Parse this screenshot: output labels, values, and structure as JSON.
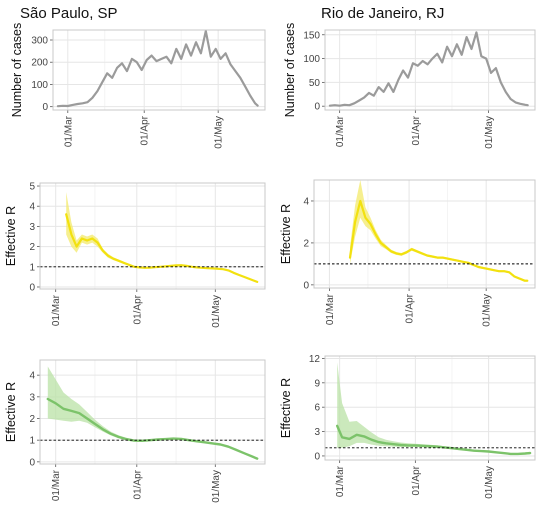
{
  "figure": {
    "left_title": "São Paulo, SP",
    "right_title": "Rio de Janeiro, RJ"
  },
  "colors": {
    "cases": "#a6a6a6",
    "cases_line": "#9b9b9b",
    "yellow_line": "#f2e10f",
    "yellow_band": "#f3e96a",
    "green_line": "#7cc36a",
    "green_band": "#b9e2a6",
    "grid": "#e6e6e6",
    "border": "#c8c8c8",
    "reference": "#000000"
  },
  "chart_data": [
    {
      "id": "sp-cases",
      "type": "line",
      "title": "São Paulo, SP",
      "xlabel": "",
      "ylabel": "Number of cases",
      "x_type": "date",
      "xlim": [
        "2020-02-24",
        "2020-05-20"
      ],
      "x_ticks": [
        "2020-03-01",
        "2020-04-01",
        "2020-05-01"
      ],
      "x_tick_labels": [
        "01/Mar",
        "01/Apr",
        "01/May"
      ],
      "ylim": [
        -15,
        345
      ],
      "y_ticks": [
        0,
        100,
        200,
        300
      ],
      "series": [
        {
          "style": "cases",
          "x": [
            "2020-02-26",
            "2020-02-28",
            "2020-03-01",
            "2020-03-03",
            "2020-03-05",
            "2020-03-07",
            "2020-03-09",
            "2020-03-11",
            "2020-03-13",
            "2020-03-15",
            "2020-03-17",
            "2020-03-19",
            "2020-03-21",
            "2020-03-23",
            "2020-03-25",
            "2020-03-27",
            "2020-03-29",
            "2020-03-31",
            "2020-04-02",
            "2020-04-04",
            "2020-04-06",
            "2020-04-08",
            "2020-04-10",
            "2020-04-12",
            "2020-04-14",
            "2020-04-16",
            "2020-04-18",
            "2020-04-20",
            "2020-04-22",
            "2020-04-24",
            "2020-04-26",
            "2020-04-28",
            "2020-04-30",
            "2020-05-02",
            "2020-05-04",
            "2020-05-06",
            "2020-05-08",
            "2020-05-10",
            "2020-05-12",
            "2020-05-14",
            "2020-05-16",
            "2020-05-17"
          ],
          "y": [
            2,
            4,
            3,
            8,
            12,
            15,
            20,
            40,
            70,
            110,
            150,
            130,
            175,
            195,
            160,
            215,
            200,
            165,
            210,
            230,
            205,
            215,
            225,
            195,
            260,
            215,
            280,
            230,
            290,
            240,
            340,
            225,
            260,
            215,
            240,
            190,
            160,
            130,
            90,
            50,
            15,
            5
          ]
        }
      ]
    },
    {
      "id": "rj-cases",
      "type": "line",
      "title": "Rio de Janeiro, RJ",
      "xlabel": "",
      "ylabel": "Number of cases",
      "x_type": "date",
      "xlim": [
        "2020-02-24",
        "2020-05-20"
      ],
      "x_ticks": [
        "2020-03-01",
        "2020-04-01",
        "2020-05-01"
      ],
      "x_tick_labels": [
        "01/Mar",
        "01/Apr",
        "01/May"
      ],
      "ylim": [
        -8,
        160
      ],
      "y_ticks": [
        0,
        50,
        100,
        150
      ],
      "series": [
        {
          "style": "cases",
          "x": [
            "2020-02-26",
            "2020-02-28",
            "2020-03-01",
            "2020-03-03",
            "2020-03-05",
            "2020-03-07",
            "2020-03-09",
            "2020-03-11",
            "2020-03-13",
            "2020-03-15",
            "2020-03-17",
            "2020-03-19",
            "2020-03-21",
            "2020-03-23",
            "2020-03-25",
            "2020-03-27",
            "2020-03-29",
            "2020-03-31",
            "2020-04-02",
            "2020-04-04",
            "2020-04-06",
            "2020-04-08",
            "2020-04-10",
            "2020-04-12",
            "2020-04-14",
            "2020-04-16",
            "2020-04-18",
            "2020-04-20",
            "2020-04-22",
            "2020-04-24",
            "2020-04-26",
            "2020-04-28",
            "2020-04-30",
            "2020-05-02",
            "2020-05-04",
            "2020-05-06",
            "2020-05-08",
            "2020-05-10",
            "2020-05-12",
            "2020-05-14",
            "2020-05-16",
            "2020-05-17"
          ],
          "y": [
            1,
            2,
            1,
            3,
            2,
            6,
            12,
            18,
            28,
            22,
            40,
            30,
            48,
            30,
            55,
            75,
            60,
            90,
            85,
            95,
            88,
            100,
            110,
            92,
            125,
            105,
            130,
            108,
            145,
            120,
            155,
            105,
            100,
            70,
            80,
            50,
            30,
            15,
            8,
            5,
            3,
            2
          ]
        }
      ]
    },
    {
      "id": "sp-r-yellow",
      "type": "line",
      "xlabel": "",
      "ylabel": "Effective R",
      "x_type": "date",
      "xlim": [
        "2020-02-24",
        "2020-05-20"
      ],
      "x_ticks": [
        "2020-03-01",
        "2020-04-01",
        "2020-05-01"
      ],
      "x_tick_labels": [
        "01/Mar",
        "01/Apr",
        "01/May"
      ],
      "ylim": [
        -0.1,
        5.15
      ],
      "y_ticks": [
        0,
        1,
        2,
        3,
        4,
        5
      ],
      "reference_line": 1,
      "series": [
        {
          "style": "yellow",
          "x": [
            "2020-03-05",
            "2020-03-07",
            "2020-03-09",
            "2020-03-11",
            "2020-03-13",
            "2020-03-15",
            "2020-03-17",
            "2020-03-19",
            "2020-03-21",
            "2020-03-23",
            "2020-03-25",
            "2020-03-27",
            "2020-03-29",
            "2020-03-31",
            "2020-04-02",
            "2020-04-04",
            "2020-04-06",
            "2020-04-08",
            "2020-04-10",
            "2020-04-12",
            "2020-04-14",
            "2020-04-16",
            "2020-04-18",
            "2020-04-20",
            "2020-04-22",
            "2020-04-24",
            "2020-04-26",
            "2020-04-28",
            "2020-04-30",
            "2020-05-02",
            "2020-05-04",
            "2020-05-06",
            "2020-05-08",
            "2020-05-10",
            "2020-05-12",
            "2020-05-14",
            "2020-05-16",
            "2020-05-17"
          ],
          "y": [
            3.6,
            2.6,
            2.0,
            2.4,
            2.3,
            2.4,
            2.2,
            1.8,
            1.55,
            1.4,
            1.3,
            1.2,
            1.1,
            1.0,
            0.97,
            0.95,
            0.96,
            0.98,
            1.0,
            1.02,
            1.05,
            1.07,
            1.08,
            1.05,
            1.0,
            0.97,
            0.95,
            0.93,
            0.92,
            0.9,
            0.88,
            0.82,
            0.7,
            0.6,
            0.5,
            0.4,
            0.3,
            0.25
          ],
          "lower": [
            2.6,
            2.0,
            1.7,
            2.2,
            2.1,
            2.2,
            2.0,
            1.7,
            1.45,
            1.33,
            1.24,
            1.15,
            1.06,
            0.97,
            0.94,
            0.92,
            0.93,
            0.95,
            0.97,
            0.99,
            1.02,
            1.04,
            1.05,
            1.02,
            0.97,
            0.94,
            0.92,
            0.9,
            0.89,
            0.87,
            0.85,
            0.79,
            0.67,
            0.57,
            0.47,
            0.37,
            0.27,
            0.22
          ],
          "upper": [
            4.7,
            3.2,
            2.3,
            2.6,
            2.5,
            2.6,
            2.4,
            1.9,
            1.65,
            1.47,
            1.36,
            1.25,
            1.14,
            1.03,
            1.0,
            0.98,
            0.99,
            1.01,
            1.03,
            1.05,
            1.08,
            1.1,
            1.11,
            1.08,
            1.03,
            1.0,
            0.98,
            0.96,
            0.95,
            0.93,
            0.91,
            0.85,
            0.73,
            0.63,
            0.53,
            0.43,
            0.33,
            0.28
          ]
        }
      ]
    },
    {
      "id": "rj-r-yellow",
      "type": "line",
      "xlabel": "",
      "ylabel": "Effective R",
      "x_type": "date",
      "xlim": [
        "2020-02-24",
        "2020-05-20"
      ],
      "x_ticks": [
        "2020-03-01",
        "2020-04-01",
        "2020-05-01"
      ],
      "x_tick_labels": [
        "01/Mar",
        "01/Apr",
        "01/May"
      ],
      "ylim": [
        -0.15,
        5.0
      ],
      "y_ticks": [
        0,
        2,
        4
      ],
      "reference_line": 1,
      "series": [
        {
          "style": "yellow",
          "x": [
            "2020-03-09",
            "2020-03-11",
            "2020-03-13",
            "2020-03-15",
            "2020-03-17",
            "2020-03-19",
            "2020-03-21",
            "2020-03-23",
            "2020-03-25",
            "2020-03-27",
            "2020-03-29",
            "2020-03-31",
            "2020-04-02",
            "2020-04-04",
            "2020-04-06",
            "2020-04-08",
            "2020-04-10",
            "2020-04-12",
            "2020-04-14",
            "2020-04-16",
            "2020-04-18",
            "2020-04-20",
            "2020-04-22",
            "2020-04-24",
            "2020-04-26",
            "2020-04-28",
            "2020-04-30",
            "2020-05-02",
            "2020-05-04",
            "2020-05-06",
            "2020-05-08",
            "2020-05-10",
            "2020-05-12",
            "2020-05-14",
            "2020-05-16",
            "2020-05-17"
          ],
          "y": [
            1.3,
            3.0,
            4.0,
            3.2,
            2.9,
            2.4,
            2.0,
            1.8,
            1.6,
            1.5,
            1.45,
            1.55,
            1.7,
            1.6,
            1.5,
            1.4,
            1.35,
            1.3,
            1.3,
            1.25,
            1.2,
            1.15,
            1.1,
            1.05,
            0.95,
            0.85,
            0.8,
            0.75,
            0.7,
            0.65,
            0.65,
            0.6,
            0.4,
            0.3,
            0.2,
            0.2
          ],
          "lower": [
            1.0,
            2.3,
            3.2,
            2.8,
            2.6,
            2.2,
            1.85,
            1.7,
            1.52,
            1.43,
            1.38,
            1.48,
            1.63,
            1.54,
            1.44,
            1.35,
            1.3,
            1.25,
            1.25,
            1.2,
            1.15,
            1.1,
            1.05,
            1.0,
            0.9,
            0.8,
            0.75,
            0.7,
            0.65,
            0.6,
            0.6,
            0.55,
            0.35,
            0.25,
            0.15,
            0.15
          ],
          "upper": [
            1.8,
            3.8,
            5.0,
            3.7,
            3.2,
            2.6,
            2.15,
            1.9,
            1.68,
            1.57,
            1.52,
            1.62,
            1.77,
            1.66,
            1.56,
            1.45,
            1.4,
            1.35,
            1.35,
            1.3,
            1.25,
            1.2,
            1.15,
            1.1,
            1.0,
            0.9,
            0.85,
            0.8,
            0.75,
            0.7,
            0.7,
            0.65,
            0.45,
            0.35,
            0.25,
            0.25
          ]
        }
      ]
    },
    {
      "id": "sp-r-green",
      "type": "line",
      "xlabel": "",
      "ylabel": "Effective R",
      "x_type": "date",
      "xlim": [
        "2020-02-24",
        "2020-05-20"
      ],
      "x_ticks": [
        "2020-03-01",
        "2020-04-01",
        "2020-05-01"
      ],
      "x_tick_labels": [
        "01/Mar",
        "01/Apr",
        "01/May"
      ],
      "ylim": [
        -0.1,
        4.7
      ],
      "y_ticks": [
        0,
        1,
        2,
        3,
        4
      ],
      "reference_line": 1,
      "series": [
        {
          "style": "green",
          "x": [
            "2020-02-27",
            "2020-03-01",
            "2020-03-04",
            "2020-03-07",
            "2020-03-10",
            "2020-03-13",
            "2020-03-16",
            "2020-03-19",
            "2020-03-22",
            "2020-03-25",
            "2020-03-28",
            "2020-03-31",
            "2020-04-03",
            "2020-04-06",
            "2020-04-09",
            "2020-04-12",
            "2020-04-15",
            "2020-04-18",
            "2020-04-21",
            "2020-04-24",
            "2020-04-27",
            "2020-04-30",
            "2020-05-03",
            "2020-05-06",
            "2020-05-09",
            "2020-05-12",
            "2020-05-15",
            "2020-05-17"
          ],
          "y": [
            2.9,
            2.7,
            2.45,
            2.35,
            2.25,
            2.0,
            1.75,
            1.5,
            1.3,
            1.15,
            1.05,
            0.98,
            0.97,
            1.0,
            1.03,
            1.05,
            1.07,
            1.06,
            1.0,
            0.95,
            0.9,
            0.85,
            0.8,
            0.7,
            0.55,
            0.4,
            0.25,
            0.15
          ],
          "lower": [
            2.0,
            1.95,
            1.9,
            1.85,
            1.9,
            1.8,
            1.6,
            1.4,
            1.22,
            1.08,
            0.99,
            0.93,
            0.93,
            0.96,
            0.99,
            1.01,
            1.03,
            1.02,
            0.97,
            0.92,
            0.87,
            0.82,
            0.77,
            0.67,
            0.52,
            0.37,
            0.22,
            0.12
          ],
          "upper": [
            4.4,
            3.8,
            3.2,
            2.9,
            2.65,
            2.3,
            1.95,
            1.65,
            1.4,
            1.23,
            1.11,
            1.03,
            1.01,
            1.04,
            1.07,
            1.09,
            1.11,
            1.1,
            1.03,
            0.98,
            0.93,
            0.88,
            0.83,
            0.73,
            0.58,
            0.43,
            0.28,
            0.18
          ]
        }
      ]
    },
    {
      "id": "rj-r-green",
      "type": "line",
      "xlabel": "",
      "ylabel": "Effective R",
      "x_type": "date",
      "xlim": [
        "2020-02-24",
        "2020-05-20"
      ],
      "x_ticks": [
        "2020-03-01",
        "2020-04-01",
        "2020-05-01"
      ],
      "x_tick_labels": [
        "01/Mar",
        "01/Apr",
        "01/May"
      ],
      "ylim": [
        -0.5,
        12.3
      ],
      "y_ticks": [
        0,
        3,
        6,
        9,
        12
      ],
      "reference_line": 1,
      "series": [
        {
          "style": "green",
          "x": [
            "2020-02-29",
            "2020-03-02",
            "2020-03-05",
            "2020-03-08",
            "2020-03-11",
            "2020-03-14",
            "2020-03-17",
            "2020-03-20",
            "2020-03-23",
            "2020-03-26",
            "2020-03-29",
            "2020-04-01",
            "2020-04-04",
            "2020-04-07",
            "2020-04-10",
            "2020-04-13",
            "2020-04-16",
            "2020-04-19",
            "2020-04-22",
            "2020-04-25",
            "2020-04-28",
            "2020-05-01",
            "2020-05-04",
            "2020-05-07",
            "2020-05-10",
            "2020-05-13",
            "2020-05-16",
            "2020-05-18"
          ],
          "y": [
            3.7,
            2.3,
            2.1,
            2.6,
            2.4,
            2.0,
            1.7,
            1.55,
            1.45,
            1.35,
            1.3,
            1.3,
            1.25,
            1.2,
            1.15,
            1.05,
            0.95,
            0.85,
            0.75,
            0.65,
            0.6,
            0.55,
            0.45,
            0.35,
            0.25,
            0.25,
            0.3,
            0.35
          ],
          "lower": [
            1.0,
            1.0,
            1.2,
            1.6,
            1.6,
            1.4,
            1.25,
            1.2,
            1.15,
            1.1,
            1.1,
            1.1,
            1.07,
            1.03,
            1.0,
            0.92,
            0.83,
            0.74,
            0.65,
            0.56,
            0.5,
            0.45,
            0.36,
            0.27,
            0.18,
            0.15,
            0.18,
            0.2
          ],
          "upper": [
            11.5,
            6.5,
            4.2,
            4.3,
            3.6,
            2.9,
            2.3,
            2.0,
            1.8,
            1.65,
            1.55,
            1.5,
            1.43,
            1.37,
            1.3,
            1.2,
            1.08,
            0.97,
            0.86,
            0.75,
            0.7,
            0.66,
            0.56,
            0.45,
            0.34,
            0.36,
            0.44,
            0.52
          ]
        }
      ]
    }
  ]
}
